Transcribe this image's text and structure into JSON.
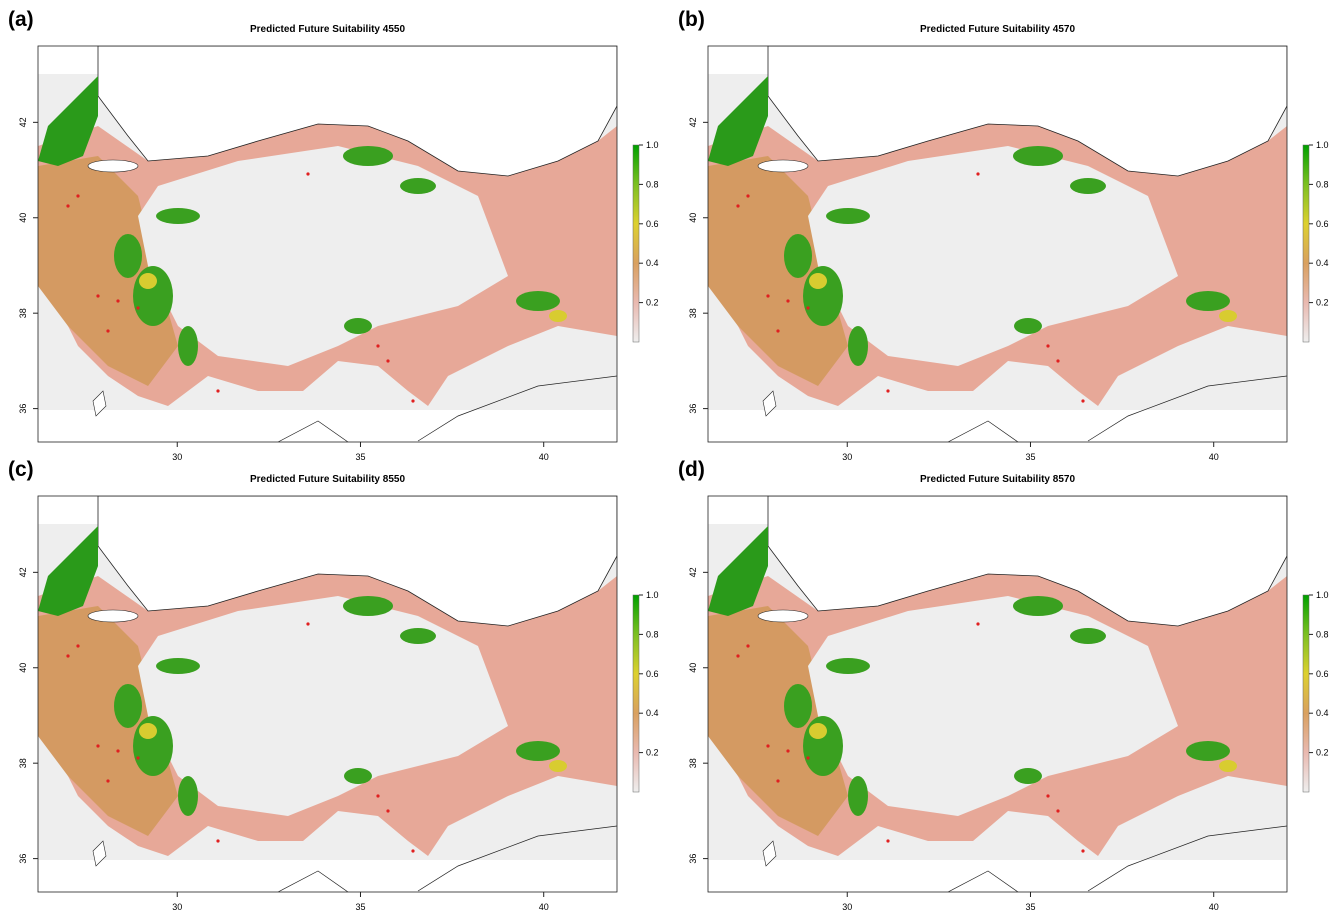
{
  "panels": [
    {
      "label": "(a)",
      "title": "Predicted Future Suitability 4550"
    },
    {
      "label": "(b)",
      "title": "Predicted Future Suitability 4570"
    },
    {
      "label": "(c)",
      "title": "Predicted Future Suitability 8550"
    },
    {
      "label": "(d)",
      "title": "Predicted Future Suitability 8570"
    }
  ],
  "xlim": [
    26.2,
    42
  ],
  "ylim": [
    35.3,
    43.6
  ],
  "xticks": [
    30,
    35,
    40
  ],
  "yticks": [
    36,
    38,
    40,
    42
  ],
  "colorbar": {
    "range": [
      0,
      1
    ],
    "ticks": [
      0.2,
      0.4,
      0.6,
      0.8,
      {
        "value": 1,
        "label": "1.0"
      }
    ],
    "colors": [
      "#eeeeee",
      "#e9b9b0",
      "#d9a060",
      "#ddd030",
      "#7cc020",
      "#00a000"
    ]
  }
}
